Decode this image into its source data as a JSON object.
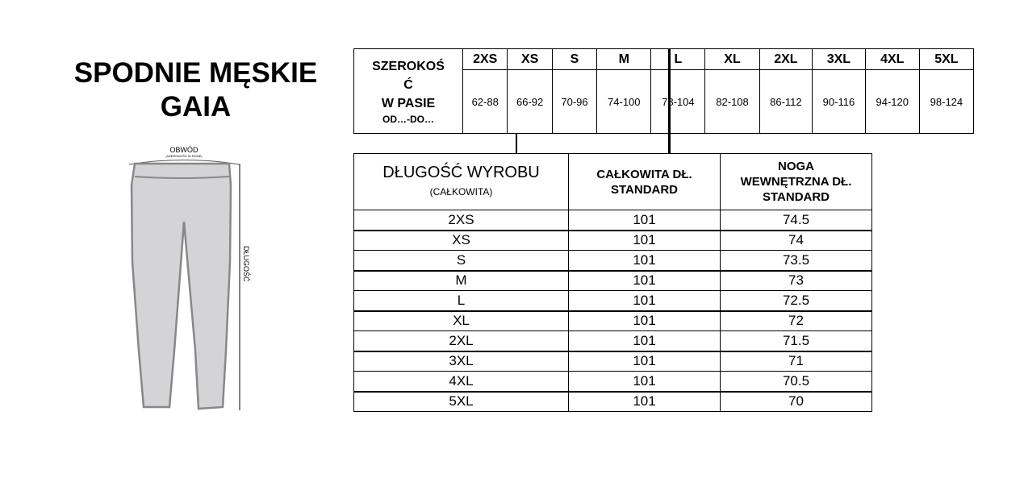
{
  "title": {
    "line1": "SPODNIE MĘSKIE",
    "line2": "GAIA"
  },
  "diagram": {
    "circumference_label": "OBWÓD",
    "circumference_sub": "(SZEROKOŚĆ W PASIE)",
    "length_label": "DŁUGOŚĆ"
  },
  "waist_table": {
    "label_l1": "SZEROKOŚ",
    "label_l2": "Ć",
    "label_l3": "W PASIE",
    "label_sub": "OD…-DO…",
    "sizes": [
      "2XS",
      "XS",
      "S",
      "M",
      "L",
      "XL",
      "2XL",
      "3XL",
      "4XL",
      "5XL"
    ],
    "values": [
      "62-88",
      "66-92",
      "70-96",
      "74-100",
      "78-104",
      "82-108",
      "86-112",
      "90-116",
      "94-120",
      "98-124"
    ]
  },
  "length_table": {
    "header_first": "DŁUGOŚĆ WYROBU",
    "header_first_sub": "(CAŁKOWITA)",
    "header_total_l1": "CAŁKOWITA DŁ.",
    "header_total_l2": "STANDARD",
    "header_inner_l1": "NOGA",
    "header_inner_l2": "WEWNĘTRZNA DŁ.",
    "header_inner_l3": "STANDARD",
    "rows": [
      {
        "size": "2XS",
        "total": "101",
        "inner": "74.5"
      },
      {
        "size": "XS",
        "total": "101",
        "inner": "74"
      },
      {
        "size": "S",
        "total": "101",
        "inner": "73.5"
      },
      {
        "size": "M",
        "total": "101",
        "inner": "73"
      },
      {
        "size": "L",
        "total": "101",
        "inner": "72.5"
      },
      {
        "size": "XL",
        "total": "101",
        "inner": "72"
      },
      {
        "size": "2XL",
        "total": "101",
        "inner": "71.5"
      },
      {
        "size": "3XL",
        "total": "101",
        "inner": "71"
      },
      {
        "size": "4XL",
        "total": "101",
        "inner": "70.5"
      },
      {
        "size": "5XL",
        "total": "101",
        "inner": "70"
      }
    ]
  }
}
